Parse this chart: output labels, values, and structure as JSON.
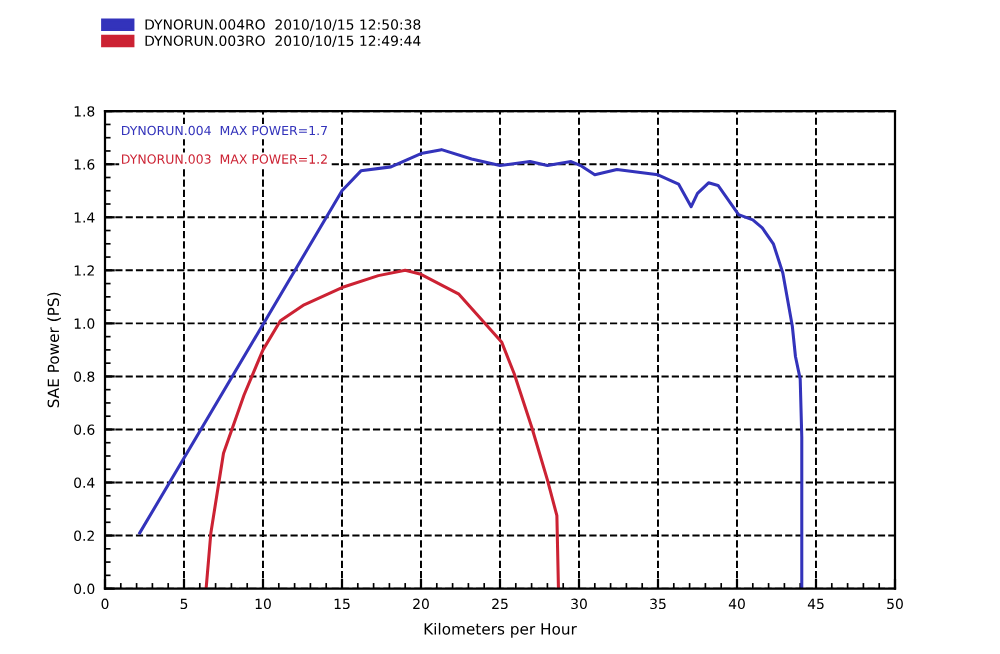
{
  "chart_data": {
    "type": "line",
    "xlabel": "Kilometers per Hour",
    "ylabel": "SAE Power (PS)",
    "xlim": [
      0,
      50
    ],
    "xticks": [
      0,
      5,
      10,
      15,
      20,
      25,
      30,
      35,
      40,
      45,
      50
    ],
    "ylim": [
      0,
      1.8
    ],
    "yticks": [
      {
        "value": 0,
        "label": "0.0"
      },
      {
        "value": 0.2,
        "label": "0.2"
      },
      {
        "value": 0.4,
        "label": "0.4"
      },
      {
        "value": 0.6,
        "label": "0.6"
      },
      {
        "value": 0.8,
        "label": "0.8"
      },
      {
        "value": 1.0,
        "label": "1.0"
      },
      {
        "value": 1.2,
        "label": "1.2"
      },
      {
        "value": 1.4,
        "label": "1.4"
      },
      {
        "value": 1.6,
        "label": "1.6"
      },
      {
        "value": 1.8,
        "label": "1.8"
      }
    ],
    "grid": true,
    "legend": "top left",
    "line_style": "solid",
    "annotations": [
      "DYNORUN.004  MAX POWER=1.7",
      "DYNORUN.003  MAX POWER=1.2"
    ],
    "series": [
      {
        "name": "DYNORUN.004RO  2010/10/15 12:50:38",
        "color": "#3333bb",
        "x": [
          2.2,
          15.0,
          16.2,
          18.1,
          20.0,
          21.3,
          23.2,
          25.0,
          26.9,
          28.0,
          29.5,
          30.1,
          31.0,
          32.4,
          35.0,
          36.3,
          37.1,
          37.5,
          38.2,
          38.8,
          40.1,
          41.0,
          41.6,
          42.3,
          42.9,
          43.5,
          43.7,
          44.0,
          44.1,
          44.1
        ],
        "values": [
          0.21,
          1.5,
          1.575,
          1.59,
          1.64,
          1.655,
          1.62,
          1.595,
          1.61,
          1.595,
          1.61,
          1.595,
          1.56,
          1.58,
          1.56,
          1.525,
          1.44,
          1.49,
          1.53,
          1.52,
          1.41,
          1.39,
          1.36,
          1.3,
          1.19,
          0.99,
          0.875,
          0.79,
          0.57,
          0.0
        ]
      },
      {
        "name": "DYNORUN.003RO  2010/10/15 12:49:44",
        "color": "#cc2233",
        "x": [
          6.4,
          6.7,
          7.5,
          8.8,
          10.0,
          11.1,
          12.6,
          15.0,
          17.3,
          19.0,
          20.0,
          22.4,
          25.1,
          25.9,
          27.0,
          28.0,
          28.6,
          28.7
        ],
        "values": [
          0.0,
          0.21,
          0.51,
          0.73,
          0.9,
          1.01,
          1.07,
          1.135,
          1.18,
          1.2,
          1.185,
          1.11,
          0.93,
          0.81,
          0.61,
          0.41,
          0.275,
          0.0
        ]
      }
    ]
  }
}
